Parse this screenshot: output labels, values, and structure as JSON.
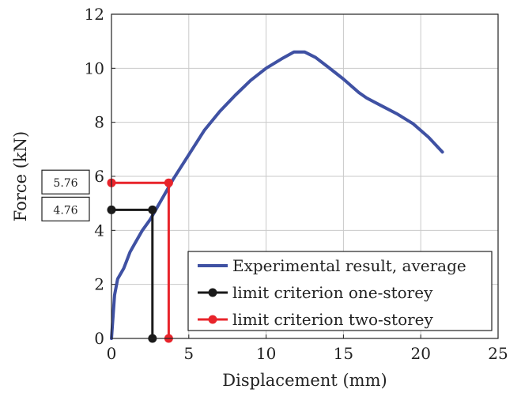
{
  "chart_data": {
    "type": "line",
    "xlabel": "Displacement (mm)",
    "ylabel": "Force (kN)",
    "xlim": [
      0,
      25
    ],
    "ylim": [
      0,
      12
    ],
    "xticks": [
      0,
      5,
      10,
      15,
      20,
      25
    ],
    "yticks": [
      0,
      2,
      4,
      6,
      8,
      10,
      12
    ],
    "grid": true,
    "legend_position": "bottom-right",
    "series": [
      {
        "name": "Experimental result, average",
        "color": "#3f51a3",
        "marker": false,
        "x": [
          0,
          0.2,
          0.4,
          0.6,
          0.8,
          1.0,
          1.2,
          1.5,
          2.0,
          2.5,
          3.0,
          3.5,
          4.0,
          5.0,
          6.0,
          7.0,
          8.0,
          9.0,
          10.0,
          11.0,
          11.8,
          12.5,
          13.2,
          14.0,
          15.0,
          16.0,
          16.5,
          17.5,
          18.5,
          19.5,
          20.5,
          21.4
        ],
        "y": [
          0,
          1.6,
          2.2,
          2.4,
          2.6,
          2.9,
          3.2,
          3.5,
          4.0,
          4.4,
          4.9,
          5.4,
          5.9,
          6.8,
          7.7,
          8.4,
          9.0,
          9.55,
          10.0,
          10.35,
          10.6,
          10.6,
          10.4,
          10.05,
          9.6,
          9.1,
          8.9,
          8.6,
          8.3,
          7.95,
          7.45,
          6.9
        ]
      },
      {
        "name": "limit criterion one-storey",
        "color": "#1a1a1a",
        "marker": true,
        "x": [
          0,
          2.65,
          2.65
        ],
        "y": [
          4.76,
          4.76,
          0
        ]
      },
      {
        "name": "limit criterion two-storey",
        "color": "#e8242b",
        "marker": true,
        "x": [
          0,
          3.7,
          3.7
        ],
        "y": [
          5.76,
          5.76,
          0
        ]
      }
    ],
    "annotations": [
      {
        "text": "5.76",
        "value": 5.76
      },
      {
        "text": "4.76",
        "value": 4.76
      }
    ]
  }
}
